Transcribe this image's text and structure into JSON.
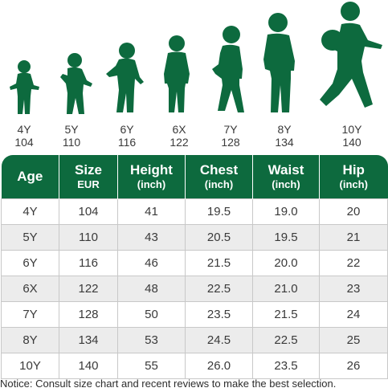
{
  "colors": {
    "brand_green": "#0d6a3e",
    "row_alt": "#ececec",
    "text": "#3a3a3a"
  },
  "figures": [
    {
      "age": "4Y",
      "size": "104",
      "icon": "toddler-silhouette-icon"
    },
    {
      "age": "5Y",
      "size": "110",
      "icon": "toddler-silhouette-icon"
    },
    {
      "age": "6Y",
      "size": "116",
      "icon": "child-silhouette-icon"
    },
    {
      "age": "6X",
      "size": "122",
      "icon": "child-silhouette-icon"
    },
    {
      "age": "7Y",
      "size": "128",
      "icon": "child-silhouette-icon"
    },
    {
      "age": "8Y",
      "size": "134",
      "icon": "child-silhouette-icon"
    },
    {
      "age": "10Y",
      "size": "140",
      "icon": "child-with-ball-silhouette-icon"
    }
  ],
  "table": {
    "headers": [
      {
        "main": "Age",
        "sub": ""
      },
      {
        "main": "Size",
        "sub": "EUR"
      },
      {
        "main": "Height",
        "sub": "(inch)"
      },
      {
        "main": "Chest",
        "sub": "(inch)"
      },
      {
        "main": "Waist",
        "sub": "(inch)"
      },
      {
        "main": "Hip",
        "sub": "(inch)"
      }
    ],
    "rows": [
      [
        "4Y",
        "104",
        "41",
        "19.5",
        "19.0",
        "20"
      ],
      [
        "5Y",
        "110",
        "43",
        "20.5",
        "19.5",
        "21"
      ],
      [
        "6Y",
        "116",
        "46",
        "21.5",
        "20.0",
        "22"
      ],
      [
        "6X",
        "122",
        "48",
        "22.5",
        "21.0",
        "23"
      ],
      [
        "7Y",
        "128",
        "50",
        "23.5",
        "21.5",
        "24"
      ],
      [
        "8Y",
        "134",
        "53",
        "24.5",
        "22.5",
        "25"
      ],
      [
        "10Y",
        "140",
        "55",
        "26.0",
        "23.5",
        "26"
      ]
    ]
  },
  "notice": "Notice: Consult size chart and recent reviews to make the best selection."
}
